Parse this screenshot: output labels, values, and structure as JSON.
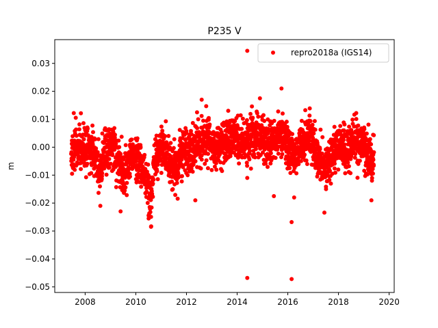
{
  "chart_data": {
    "type": "scatter",
    "title": "P235 V",
    "xlabel": "",
    "ylabel": "m",
    "xlim": [
      2006.8,
      2020.2
    ],
    "ylim": [
      -0.052,
      0.0385
    ],
    "xticks": [
      2008,
      2010,
      2012,
      2014,
      2016,
      2018,
      2020
    ],
    "xtick_labels": [
      "2008",
      "2010",
      "2012",
      "2014",
      "2016",
      "2018",
      "2020"
    ],
    "yticks": [
      0.03,
      0.02,
      0.01,
      0.0,
      -0.01,
      -0.02,
      -0.03,
      -0.04,
      -0.05
    ],
    "ytick_labels": [
      "0.03",
      "0.02",
      "0.01",
      "0.00",
      "−0.01",
      "−0.02",
      "−0.03",
      "−0.04",
      "−0.05"
    ],
    "legend": {
      "position": "top-right"
    },
    "grid": false,
    "series": [
      {
        "name": "repro2018a (IGS14)",
        "color": "#ff0000",
        "trend": [
          [
            2007.45,
            -0.002
          ],
          [
            2007.7,
            0.0
          ],
          [
            2008.0,
            -0.001
          ],
          [
            2008.3,
            0.0
          ],
          [
            2008.55,
            -0.008
          ],
          [
            2008.8,
            -0.001
          ],
          [
            2009.1,
            0.001
          ],
          [
            2009.35,
            -0.006
          ],
          [
            2009.55,
            -0.011
          ],
          [
            2009.8,
            -0.003
          ],
          [
            2010.05,
            -0.004
          ],
          [
            2010.3,
            -0.008
          ],
          [
            2010.5,
            -0.016
          ],
          [
            2010.6,
            -0.02
          ],
          [
            2010.75,
            -0.004
          ],
          [
            2011.0,
            0.0
          ],
          [
            2011.3,
            -0.005
          ],
          [
            2011.6,
            -0.008
          ],
          [
            2011.9,
            -0.001
          ],
          [
            2012.2,
            -0.002
          ],
          [
            2012.5,
            0.0
          ],
          [
            2012.8,
            0.004
          ],
          [
            2013.1,
            -0.002
          ],
          [
            2013.4,
            0.002
          ],
          [
            2013.7,
            0.003
          ],
          [
            2014.0,
            0.004
          ],
          [
            2014.3,
            0.001
          ],
          [
            2014.6,
            0.004
          ],
          [
            2014.9,
            0.005
          ],
          [
            2015.2,
            0.001
          ],
          [
            2015.5,
            0.003
          ],
          [
            2015.8,
            0.005
          ],
          [
            2016.0,
            -0.001
          ],
          [
            2016.3,
            -0.003
          ],
          [
            2016.6,
            0.002
          ],
          [
            2016.9,
            0.004
          ],
          [
            2017.15,
            -0.002
          ],
          [
            2017.4,
            -0.007
          ],
          [
            2017.7,
            -0.004
          ],
          [
            2018.0,
            0.001
          ],
          [
            2018.3,
            0.0
          ],
          [
            2018.6,
            0.002
          ],
          [
            2018.9,
            0.002
          ],
          [
            2019.15,
            -0.003
          ],
          [
            2019.4,
            -0.006
          ]
        ],
        "spread": 0.0038,
        "outliers": [
          [
            2014.4,
            0.0345
          ],
          [
            2014.4,
            -0.0468
          ],
          [
            2016.15,
            -0.0472
          ],
          [
            2016.15,
            -0.0268
          ],
          [
            2015.75,
            0.021
          ],
          [
            2012.6,
            0.017
          ],
          [
            2014.9,
            0.0175
          ],
          [
            2007.55,
            0.0122
          ],
          [
            2010.6,
            -0.0285
          ],
          [
            2008.6,
            -0.021
          ],
          [
            2009.4,
            -0.023
          ],
          [
            2012.35,
            -0.019
          ],
          [
            2015.45,
            -0.0175
          ],
          [
            2019.3,
            -0.019
          ],
          [
            2016.25,
            -0.018
          ],
          [
            2014.4,
            -0.011
          ],
          [
            2018.7,
            0.0122
          ],
          [
            2017.7,
            -0.013
          ]
        ]
      }
    ]
  }
}
